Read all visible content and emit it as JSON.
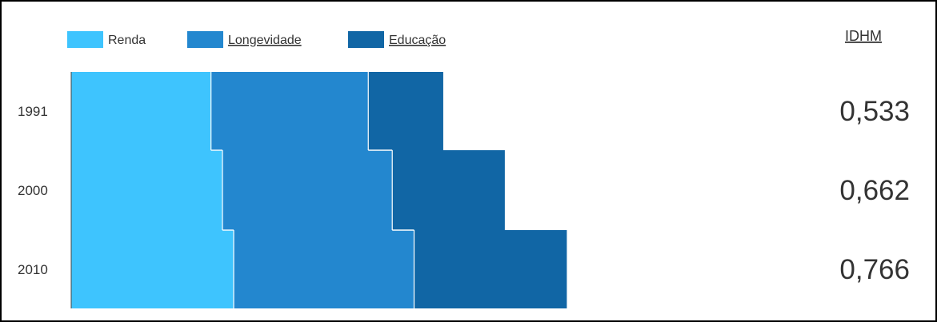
{
  "chart_data": {
    "type": "bar",
    "orientation": "horizontal",
    "stacked": true,
    "categories": [
      "1991",
      "2000",
      "2010"
    ],
    "series": [
      {
        "name": "Renda",
        "color": "#3EC4FE",
        "values": [
          0.647,
          0.7,
          0.752
        ]
      },
      {
        "name": "Longevidade",
        "color": "#2387CF",
        "values": [
          0.728,
          0.786,
          0.835
        ]
      },
      {
        "name": "Educação",
        "color": "#1166A5",
        "values": [
          0.347,
          0.521,
          0.707
        ]
      }
    ],
    "idhm_title": "IDHM",
    "idhm_values": [
      "0,533",
      "0,662",
      "0,766"
    ],
    "legend_position": "top-left",
    "grid": false
  }
}
